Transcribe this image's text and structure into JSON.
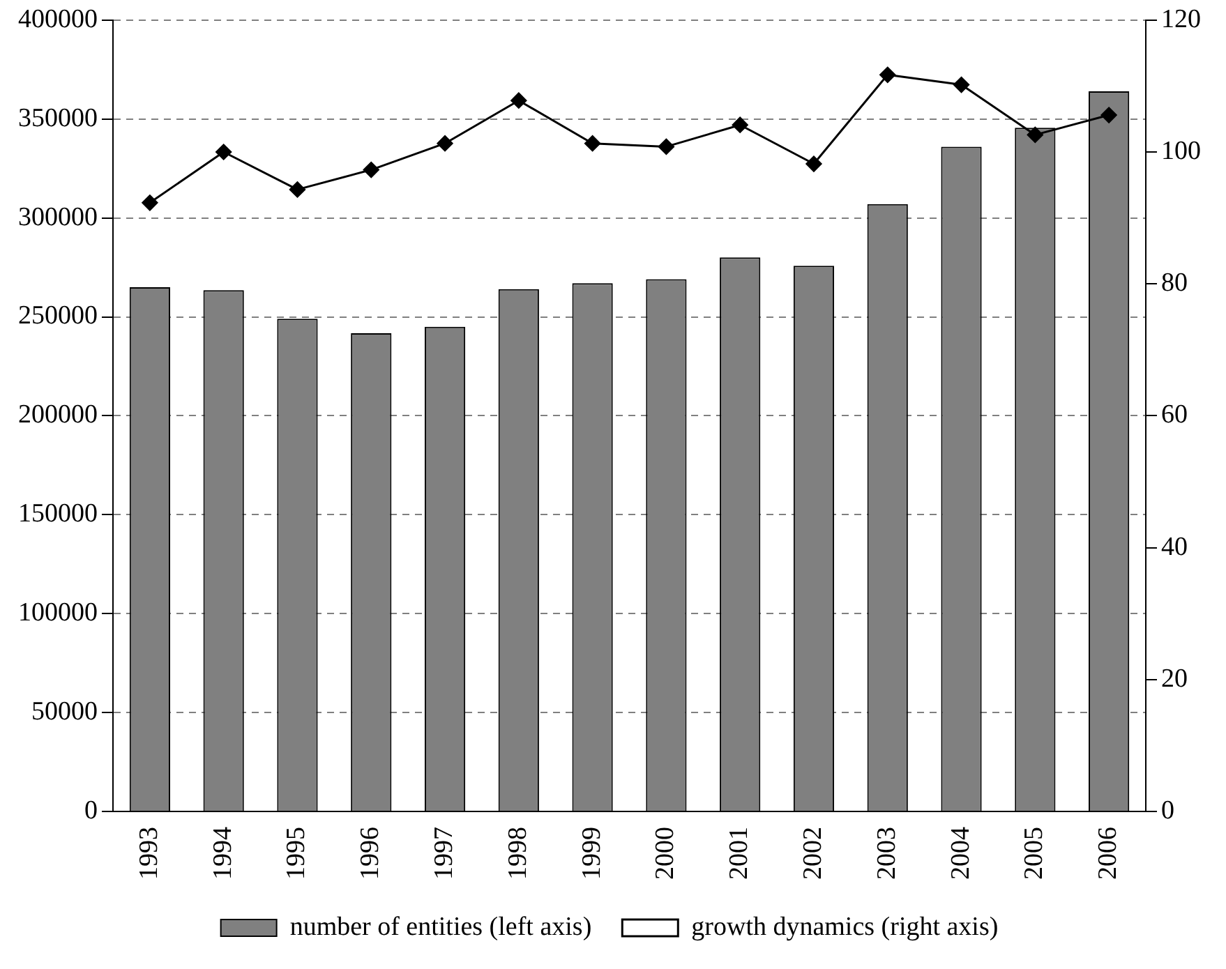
{
  "chart_data": {
    "type": "bar",
    "categories": [
      "1993",
      "1994",
      "1995",
      "1996",
      "1997",
      "1998",
      "1999",
      "2000",
      "2001",
      "2002",
      "2003",
      "2004",
      "2005",
      "2006"
    ],
    "series": [
      {
        "name": "number of entities (left axis)",
        "color": "#808080",
        "values": [
          265000,
          263500,
          249000,
          241700,
          245000,
          264000,
          267000,
          269000,
          280000,
          275800,
          307000,
          336000,
          345600,
          364000
        ]
      },
      {
        "name": "growth dynamics (right axis)",
        "type": "line",
        "axis": "y2",
        "color": "#000000",
        "marker": "diamond",
        "values": [
          92.3,
          100,
          94.3,
          97.3,
          101.3,
          107.8,
          101.3,
          100.8,
          104.1,
          98.2,
          111.7,
          110.2,
          102.6,
          105.6
        ]
      }
    ],
    "ylim": [
      0,
      400000
    ],
    "yticks": [
      0,
      50000,
      100000,
      150000,
      200000,
      250000,
      300000,
      350000,
      400000
    ],
    "y2lim": [
      0,
      120
    ],
    "y2ticks": [
      0,
      20,
      40,
      60,
      80,
      100,
      120
    ],
    "grid": "y",
    "legend": "bottom"
  }
}
